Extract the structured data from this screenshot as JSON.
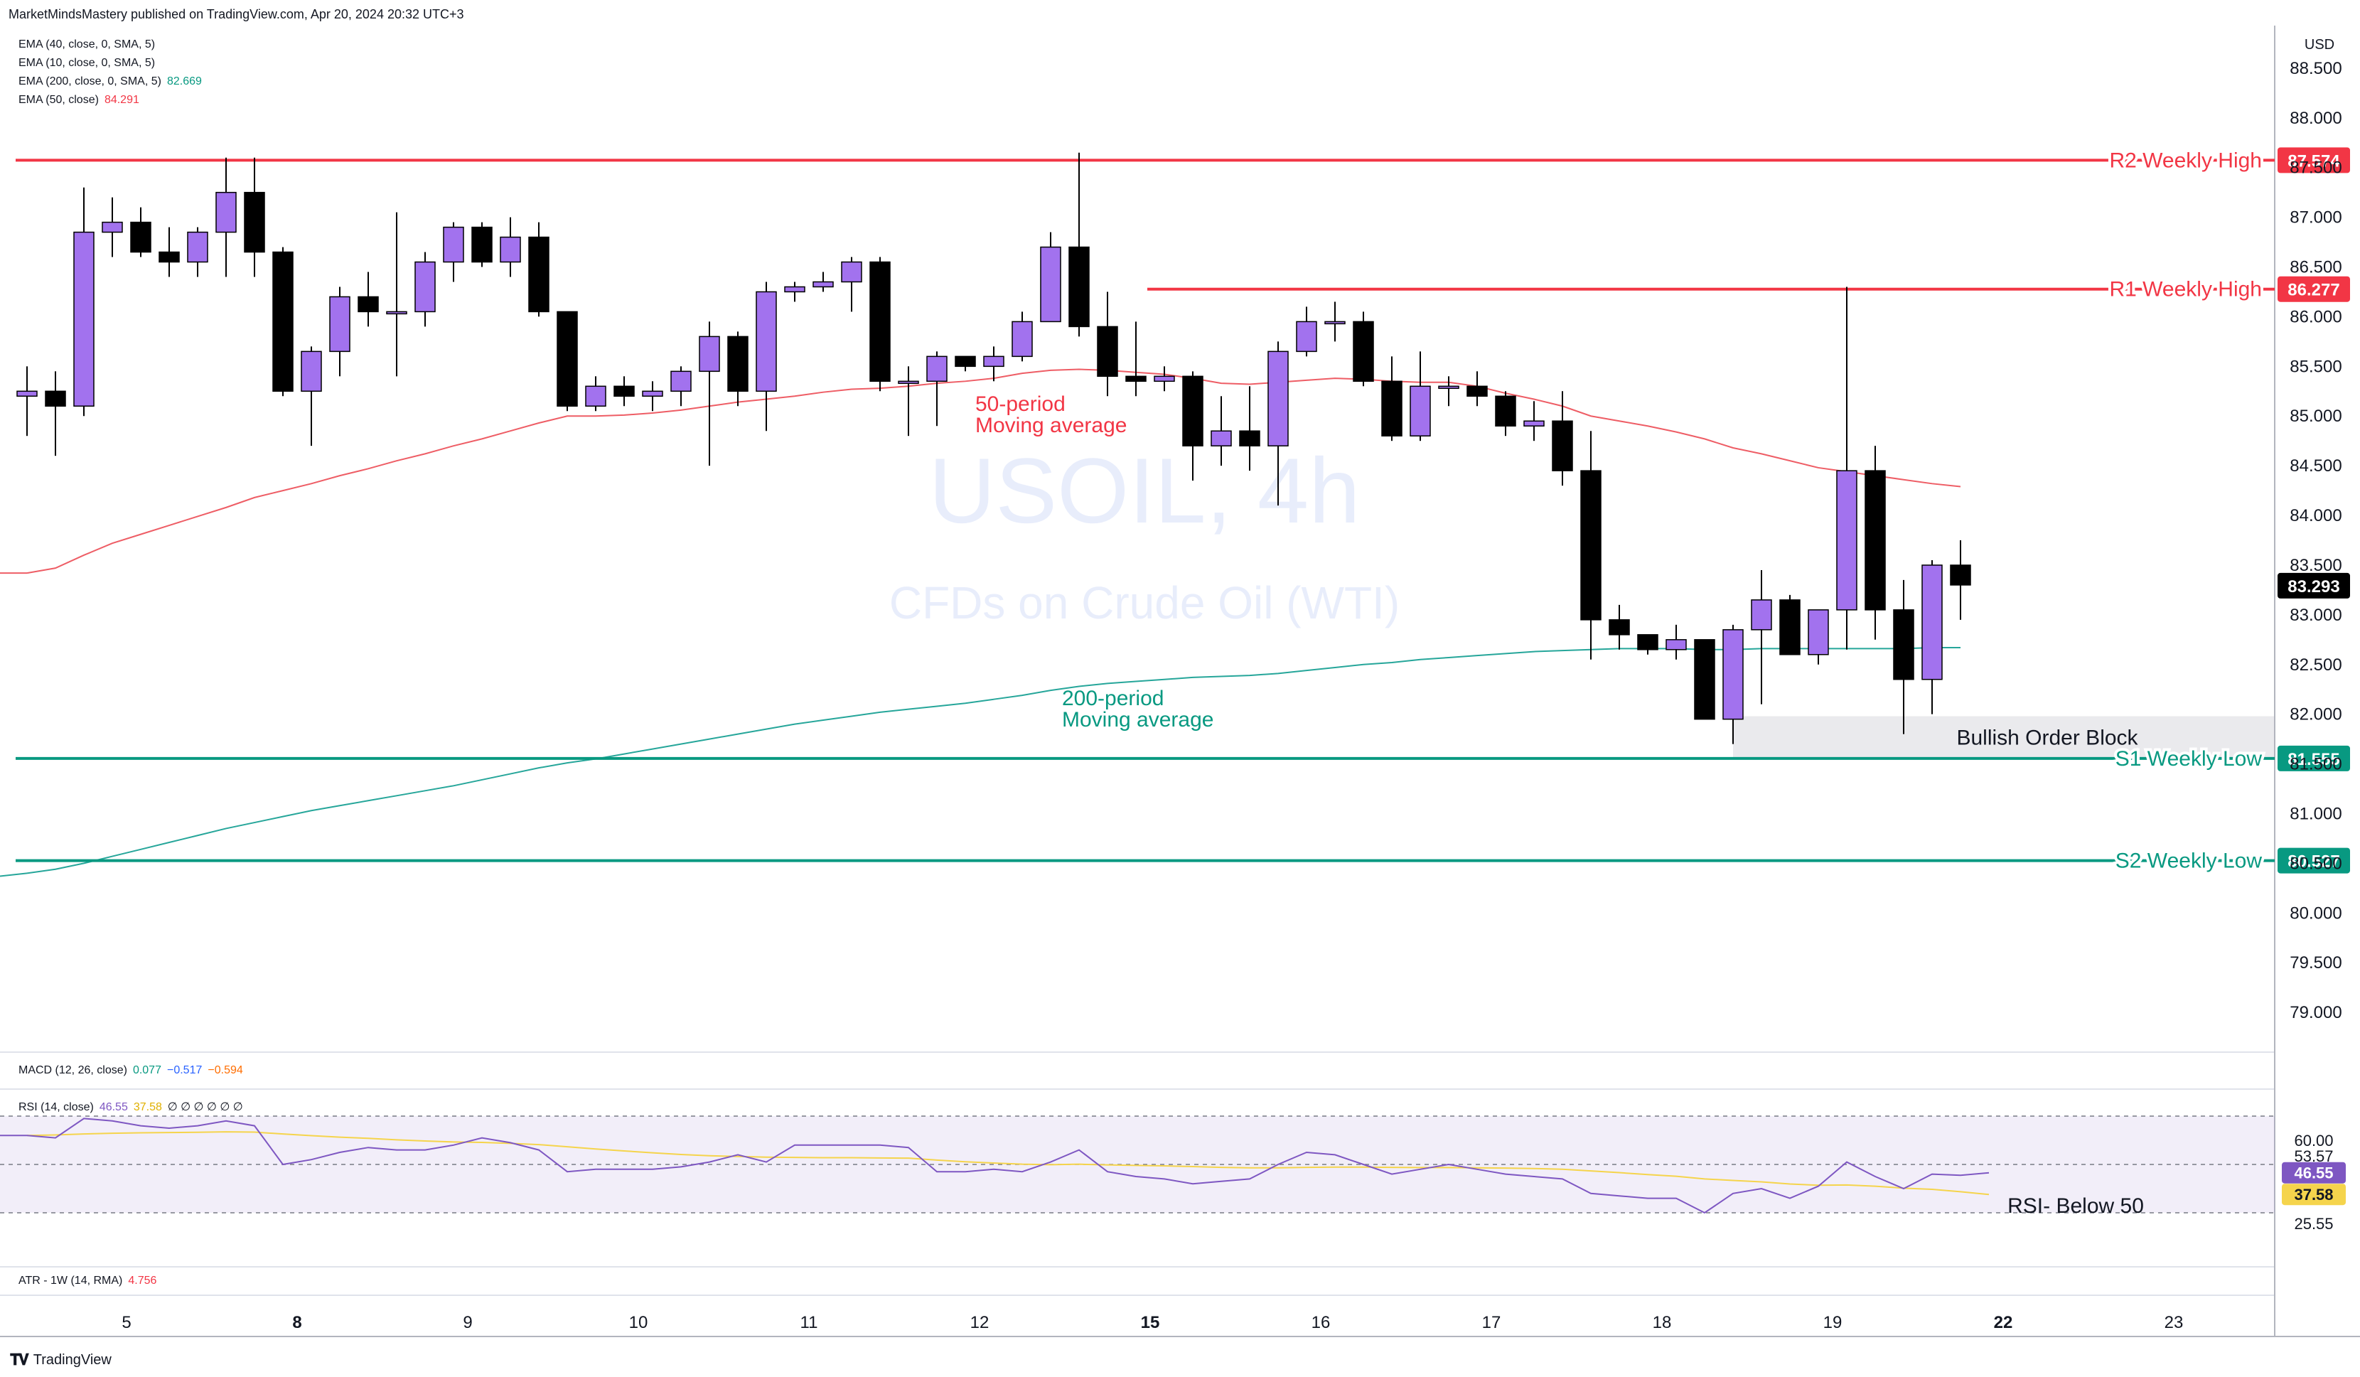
{
  "header": {
    "published": "MarketMindsMastery published on TradingView.com, Apr 20, 2024 20:32 UTC+3"
  },
  "legend": {
    "ema40": {
      "label": "EMA (40, close, 0, SMA, 5)"
    },
    "ema10": {
      "label": "EMA (10, close, 0, SMA, 5)"
    },
    "ema200": {
      "label": "EMA (200, close, 0, SMA, 5)",
      "value": "82.669"
    },
    "ema50": {
      "label": "EMA (50, close)",
      "value": "84.291"
    }
  },
  "watermark": {
    "symbol": "USOIL, 4h",
    "description": "CFDs on Crude Oil (WTI)"
  },
  "currency": "USD",
  "colors": {
    "bull": "#a272ee",
    "bear": "#000000",
    "red": "#f23645",
    "teal": "#089981",
    "rsiLine": "#7e57c2",
    "rsiMa": "#f5d44c",
    "ema50": "#ee5d65",
    "ema200": "#26a69a"
  },
  "annotations": {
    "ema50": [
      "50-period",
      "Moving average"
    ],
    "ema200": [
      "200-period",
      "Moving average"
    ],
    "orderBlock": "Bullish Order Block",
    "rsiNote": "RSI- Below 50"
  },
  "macd": {
    "label": "MACD (12, 26, close)",
    "v1": "0.077",
    "v2": "−0.517",
    "v3": "−0.594"
  },
  "rsi": {
    "label": "RSI (14, close)",
    "v1": "46.55",
    "v2": "37.58",
    "extras": "∅ ∅ ∅ ∅ ∅ ∅"
  },
  "atr": {
    "label": "ATR - 1W (14, RMA)",
    "value": "4.756"
  },
  "brand": "TradingView",
  "chart_data": {
    "type": "candlestick",
    "title": "USOIL, 4h",
    "subtitle": "CFDs on Crude Oil (WTI)",
    "ylim": [
      78.6,
      88.9
    ],
    "yticks": [
      "88.500",
      "88.000",
      "87.500",
      "87.000",
      "86.500",
      "86.000",
      "85.500",
      "85.000",
      "84.500",
      "84.000",
      "83.500",
      "83.000",
      "82.500",
      "82.000",
      "81.500",
      "81.000",
      "80.500",
      "80.000",
      "79.500",
      "79.000"
    ],
    "xticks": [
      {
        "label": "5",
        "i": 3.5,
        "bold": false
      },
      {
        "label": "8",
        "i": 9.5,
        "bold": true
      },
      {
        "label": "9",
        "i": 15.5,
        "bold": false
      },
      {
        "label": "10",
        "i": 21.5,
        "bold": false
      },
      {
        "label": "11",
        "i": 27.5,
        "bold": false
      },
      {
        "label": "12",
        "i": 33.5,
        "bold": false
      },
      {
        "label": "15",
        "i": 39.5,
        "bold": true
      },
      {
        "label": "16",
        "i": 45.5,
        "bold": false
      },
      {
        "label": "17",
        "i": 51.5,
        "bold": false
      },
      {
        "label": "18",
        "i": 57.5,
        "bold": false
      },
      {
        "label": "19",
        "i": 63.5,
        "bold": false
      },
      {
        "label": "22",
        "i": 69.5,
        "bold": true
      },
      {
        "label": "23",
        "i": 75.5,
        "bold": false
      }
    ],
    "candles": [
      [
        85.2,
        85.5,
        84.8,
        85.25
      ],
      [
        85.25,
        85.45,
        84.6,
        85.1
      ],
      [
        85.1,
        87.3,
        85.0,
        86.85
      ],
      [
        86.85,
        87.2,
        86.6,
        86.95
      ],
      [
        86.95,
        87.1,
        86.6,
        86.65
      ],
      [
        86.65,
        86.9,
        86.4,
        86.55
      ],
      [
        86.55,
        86.9,
        86.4,
        86.85
      ],
      [
        86.85,
        87.6,
        86.4,
        87.25
      ],
      [
        87.25,
        87.6,
        86.4,
        86.65
      ],
      [
        86.65,
        86.7,
        85.2,
        85.25
      ],
      [
        85.25,
        85.7,
        84.7,
        85.65
      ],
      [
        85.65,
        86.3,
        85.4,
        86.2
      ],
      [
        86.2,
        86.45,
        85.9,
        86.05
      ],
      [
        86.05,
        87.05,
        85.4,
        86.05
      ],
      [
        86.05,
        86.65,
        85.9,
        86.55
      ],
      [
        86.55,
        86.95,
        86.35,
        86.9
      ],
      [
        86.9,
        86.95,
        86.5,
        86.55
      ],
      [
        86.55,
        87.0,
        86.4,
        86.8
      ],
      [
        86.8,
        86.95,
        86.0,
        86.05
      ],
      [
        86.05,
        86.05,
        85.05,
        85.1
      ],
      [
        85.1,
        85.4,
        85.05,
        85.3
      ],
      [
        85.3,
        85.4,
        85.1,
        85.2
      ],
      [
        85.2,
        85.35,
        85.05,
        85.25
      ],
      [
        85.25,
        85.5,
        85.1,
        85.45
      ],
      [
        85.45,
        85.95,
        84.5,
        85.8
      ],
      [
        85.8,
        85.85,
        85.1,
        85.25
      ],
      [
        85.25,
        86.35,
        84.85,
        86.25
      ],
      [
        86.25,
        86.35,
        86.15,
        86.3
      ],
      [
        86.3,
        86.45,
        86.25,
        86.35
      ],
      [
        86.35,
        86.6,
        86.05,
        86.55
      ],
      [
        86.55,
        86.6,
        85.25,
        85.35
      ],
      [
        85.35,
        85.5,
        84.8,
        85.35
      ],
      [
        85.35,
        85.65,
        84.9,
        85.6
      ],
      [
        85.6,
        85.6,
        85.45,
        85.5
      ],
      [
        85.5,
        85.7,
        85.35,
        85.6
      ],
      [
        85.6,
        86.05,
        85.55,
        85.95
      ],
      [
        85.95,
        86.85,
        85.95,
        86.7
      ],
      [
        86.7,
        87.65,
        85.8,
        85.9
      ],
      [
        85.9,
        86.25,
        85.2,
        85.4
      ],
      [
        85.4,
        85.95,
        85.2,
        85.35
      ],
      [
        85.35,
        85.5,
        85.25,
        85.4
      ],
      [
        85.4,
        85.45,
        84.35,
        84.7
      ],
      [
        84.7,
        85.2,
        84.5,
        84.85
      ],
      [
        84.85,
        85.3,
        84.45,
        84.7
      ],
      [
        84.7,
        85.75,
        84.1,
        85.65
      ],
      [
        85.65,
        86.1,
        85.6,
        85.95
      ],
      [
        85.95,
        86.15,
        85.75,
        85.95
      ],
      [
        85.95,
        86.05,
        85.3,
        85.35
      ],
      [
        85.35,
        85.6,
        84.75,
        84.8
      ],
      [
        84.8,
        85.65,
        84.75,
        85.3
      ],
      [
        85.3,
        85.4,
        85.1,
        85.3
      ],
      [
        85.3,
        85.45,
        85.1,
        85.2
      ],
      [
        85.2,
        85.25,
        84.8,
        84.9
      ],
      [
        84.9,
        85.15,
        84.75,
        84.95
      ],
      [
        84.95,
        85.25,
        84.3,
        84.45
      ],
      [
        84.45,
        84.85,
        82.55,
        82.95
      ],
      [
        82.95,
        83.1,
        82.65,
        82.8
      ],
      [
        82.8,
        82.8,
        82.6,
        82.65
      ],
      [
        82.65,
        82.9,
        82.55,
        82.75
      ],
      [
        82.75,
        82.75,
        81.95,
        81.95
      ],
      [
        81.95,
        82.9,
        81.7,
        82.85
      ],
      [
        82.85,
        83.45,
        82.1,
        83.15
      ],
      [
        83.15,
        83.2,
        82.6,
        82.6
      ],
      [
        82.6,
        83.05,
        82.5,
        83.05
      ],
      [
        83.05,
        86.3,
        82.65,
        84.45
      ],
      [
        84.45,
        84.7,
        82.75,
        83.05
      ],
      [
        83.05,
        83.35,
        81.8,
        82.35
      ],
      [
        82.35,
        83.55,
        82.0,
        83.5
      ],
      [
        83.5,
        83.75,
        82.95,
        83.3
      ]
    ],
    "ema50": [
      [
        0,
        83.42
      ],
      [
        1,
        83.47
      ],
      [
        2,
        83.6
      ],
      [
        3,
        83.72
      ],
      [
        4,
        83.81
      ],
      [
        5,
        83.9
      ],
      [
        6,
        83.99
      ],
      [
        7,
        84.08
      ],
      [
        8,
        84.18
      ],
      [
        9,
        84.25
      ],
      [
        10,
        84.32
      ],
      [
        11,
        84.4
      ],
      [
        12,
        84.47
      ],
      [
        13,
        84.55
      ],
      [
        14,
        84.62
      ],
      [
        15,
        84.7
      ],
      [
        16,
        84.77
      ],
      [
        17,
        84.85
      ],
      [
        18,
        84.93
      ],
      [
        19,
        85.0
      ],
      [
        20,
        85.0
      ],
      [
        21,
        85.01
      ],
      [
        22,
        85.03
      ],
      [
        23,
        85.06
      ],
      [
        24,
        85.1
      ],
      [
        25,
        85.14
      ],
      [
        26,
        85.17
      ],
      [
        27,
        85.2
      ],
      [
        28,
        85.24
      ],
      [
        29,
        85.27
      ],
      [
        30,
        85.28
      ],
      [
        31,
        85.3
      ],
      [
        32,
        85.33
      ],
      [
        33,
        85.35
      ],
      [
        34,
        85.38
      ],
      [
        35,
        85.43
      ],
      [
        36,
        85.46
      ],
      [
        37,
        85.47
      ],
      [
        38,
        85.46
      ],
      [
        39,
        85.44
      ],
      [
        40,
        85.42
      ],
      [
        41,
        85.38
      ],
      [
        42,
        85.33
      ],
      [
        43,
        85.32
      ],
      [
        44,
        85.34
      ],
      [
        45,
        85.36
      ],
      [
        46,
        85.38
      ],
      [
        47,
        85.37
      ],
      [
        48,
        85.35
      ],
      [
        49,
        85.34
      ],
      [
        50,
        85.34
      ],
      [
        51,
        85.3
      ],
      [
        52,
        85.23
      ],
      [
        53,
        85.17
      ],
      [
        54,
        85.1
      ],
      [
        55,
        85.0
      ],
      [
        56,
        84.95
      ],
      [
        57,
        84.9
      ],
      [
        58,
        84.84
      ],
      [
        59,
        84.77
      ],
      [
        60,
        84.68
      ],
      [
        61,
        84.62
      ],
      [
        62,
        84.55
      ],
      [
        63,
        84.48
      ],
      [
        64,
        84.44
      ],
      [
        65,
        84.4
      ],
      [
        66,
        84.36
      ],
      [
        67,
        84.32
      ],
      [
        68,
        84.29
      ]
    ],
    "ema200": [
      [
        0,
        80.4
      ],
      [
        1,
        80.44
      ],
      [
        2,
        80.5
      ],
      [
        3,
        80.57
      ],
      [
        4,
        80.64
      ],
      [
        5,
        80.71
      ],
      [
        6,
        80.78
      ],
      [
        7,
        80.85
      ],
      [
        8,
        80.91
      ],
      [
        9,
        80.97
      ],
      [
        10,
        81.03
      ],
      [
        11,
        81.08
      ],
      [
        12,
        81.13
      ],
      [
        13,
        81.18
      ],
      [
        14,
        81.23
      ],
      [
        15,
        81.28
      ],
      [
        16,
        81.34
      ],
      [
        17,
        81.4
      ],
      [
        18,
        81.46
      ],
      [
        19,
        81.51
      ],
      [
        20,
        81.55
      ],
      [
        21,
        81.6
      ],
      [
        22,
        81.65
      ],
      [
        23,
        81.7
      ],
      [
        24,
        81.75
      ],
      [
        25,
        81.8
      ],
      [
        26,
        81.85
      ],
      [
        27,
        81.9
      ],
      [
        28,
        81.94
      ],
      [
        29,
        81.98
      ],
      [
        30,
        82.02
      ],
      [
        31,
        82.05
      ],
      [
        32,
        82.08
      ],
      [
        33,
        82.11
      ],
      [
        34,
        82.15
      ],
      [
        35,
        82.19
      ],
      [
        36,
        82.24
      ],
      [
        37,
        82.28
      ],
      [
        38,
        82.31
      ],
      [
        39,
        82.33
      ],
      [
        40,
        82.35
      ],
      [
        41,
        82.37
      ],
      [
        42,
        82.38
      ],
      [
        43,
        82.39
      ],
      [
        44,
        82.41
      ],
      [
        45,
        82.44
      ],
      [
        46,
        82.47
      ],
      [
        47,
        82.5
      ],
      [
        48,
        82.52
      ],
      [
        49,
        82.55
      ],
      [
        50,
        82.57
      ],
      [
        51,
        82.59
      ],
      [
        52,
        82.61
      ],
      [
        53,
        82.63
      ],
      [
        54,
        82.64
      ],
      [
        55,
        82.65
      ],
      [
        56,
        82.66
      ],
      [
        57,
        82.66
      ],
      [
        58,
        82.66
      ],
      [
        59,
        82.65
      ],
      [
        60,
        82.65
      ],
      [
        61,
        82.66
      ],
      [
        62,
        82.66
      ],
      [
        63,
        82.66
      ],
      [
        64,
        82.66
      ],
      [
        65,
        82.66
      ],
      [
        66,
        82.66
      ],
      [
        67,
        82.67
      ],
      [
        68,
        82.67
      ]
    ],
    "levels": [
      {
        "label": "R2 Weekly High",
        "value": 87.574,
        "tag": "87.574",
        "kind": "red",
        "fromI": -0.4
      },
      {
        "label": "R1 Weekly High",
        "value": 86.277,
        "tag": "86.277",
        "kind": "red",
        "fromI": 39.4
      },
      {
        "label": "S1 Weekly Low",
        "value": 81.555,
        "tag": "81.555",
        "kind": "teal",
        "fromI": -0.4
      },
      {
        "label": "S2 Weekly Low",
        "value": 80.527,
        "tag": "80.527",
        "kind": "teal",
        "fromI": -0.4
      }
    ],
    "lastPrice": {
      "value": 83.293,
      "tag": "83.293"
    },
    "orderBlock": {
      "top": 81.98,
      "bottom": 81.555,
      "fromI": 60
    },
    "rsi": {
      "ylim": [
        20,
        70
      ],
      "band": [
        70,
        30
      ],
      "levels": [
        "60.00",
        "53.57",
        "46.55",
        "37.58",
        "25.55"
      ],
      "rsiValues": [
        62,
        61,
        69,
        68,
        66,
        65,
        66,
        68,
        66,
        50,
        52,
        55,
        57,
        56,
        56,
        58,
        61,
        59,
        56,
        47,
        48,
        48,
        48,
        49,
        51,
        54,
        51,
        58,
        58,
        58,
        58,
        57,
        47,
        47,
        48,
        47,
        51,
        56,
        47,
        45,
        44,
        42,
        43,
        44,
        50,
        55,
        54,
        50,
        46,
        48,
        50,
        48,
        46,
        45,
        44,
        38,
        37,
        36,
        36,
        30,
        38,
        40,
        36,
        41,
        51,
        45,
        40,
        46,
        45.5,
        46.55
      ],
      "maValues": [
        62,
        62.2,
        62.6,
        62.9,
        63.1,
        63.2,
        63.3,
        63.5,
        63.4,
        62.6,
        61.9,
        61.3,
        60.8,
        60.2,
        59.7,
        59.3,
        59.1,
        58.7,
        58.2,
        57.3,
        56.4,
        55.6,
        54.8,
        54.1,
        53.6,
        53.3,
        53.0,
        52.9,
        52.8,
        52.8,
        52.7,
        52.6,
        51.8,
        51.1,
        50.6,
        50.1,
        49.9,
        50.1,
        49.8,
        49.6,
        49.4,
        49.1,
        48.8,
        48.6,
        48.6,
        48.8,
        48.9,
        48.9,
        48.8,
        48.7,
        48.7,
        48.6,
        48.5,
        48.3,
        48.0,
        47.3,
        46.6,
        45.8,
        45.1,
        44.0,
        43.4,
        42.8,
        41.9,
        41.4,
        41.5,
        41.0,
        40.2,
        39.7,
        38.7,
        37.58
      ]
    }
  }
}
